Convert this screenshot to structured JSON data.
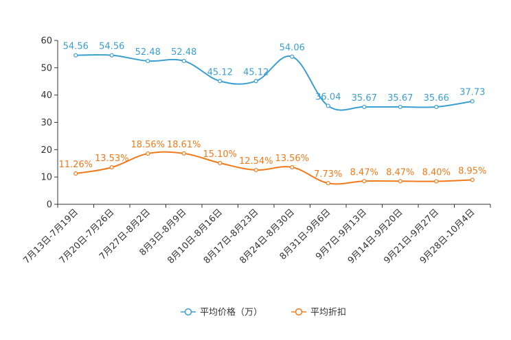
{
  "chart_data": {
    "type": "line",
    "title": "",
    "xlabel": "",
    "ylabel": "",
    "ylim": [
      0,
      60
    ],
    "yticks": [
      0,
      10,
      20,
      30,
      40,
      50,
      60
    ],
    "grid": false,
    "legend_position": "bottom-center",
    "categories": [
      "7月13日-7月19日",
      "7月20日-7月26日",
      "7月27日-8月2日",
      "8月3日-8月9日",
      "8月10日-8月16日",
      "8月17日-8月23日",
      "8月24日-8月30日",
      "8月31日-9月6日",
      "9月7日-9月13日",
      "9月14日-9月20日",
      "9月21日-9月27日",
      "9月28日-10月4日"
    ],
    "series": [
      {
        "name": "平均价格（万）",
        "color": "#3a9fd0",
        "values": [
          54.56,
          54.56,
          52.48,
          52.48,
          45.12,
          45.12,
          54.06,
          36.04,
          35.67,
          35.67,
          35.66,
          37.73
        ],
        "labels": [
          "54.56",
          "54.56",
          "52.48",
          "52.48",
          "45.12",
          "45.12",
          "54.06",
          "36.04",
          "35.67",
          "35.67",
          "35.66",
          "37.73"
        ]
      },
      {
        "name": "平均折扣",
        "color": "#f07a1a",
        "values": [
          11.26,
          13.53,
          18.56,
          18.61,
          15.1,
          12.54,
          13.56,
          7.73,
          8.47,
          8.47,
          8.4,
          8.95
        ],
        "labels": [
          "11.26%",
          "13.53%",
          "18.56%",
          "18.61%",
          "15.10%",
          "12.54%",
          "13.56%",
          "7.73%",
          "8.47%",
          "8.47%",
          "8.40%",
          "8.95%"
        ]
      }
    ]
  }
}
